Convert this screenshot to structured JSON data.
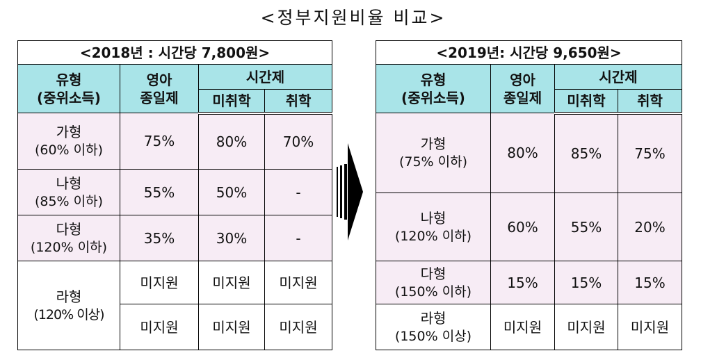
{
  "title": "<정부지원비율 비교>",
  "colors": {
    "header_bg": "#a9e4e8",
    "row_bg": "#f7ecf5",
    "border": "#000000"
  },
  "arrow_icon": "right-arrow-icon",
  "tables": [
    {
      "caption": "<2018년 : 시간당 7,800원>",
      "headers": {
        "type": [
          "유형",
          "(중위소득)"
        ],
        "infant": [
          "영아",
          "종일제"
        ],
        "hourly": "시간제",
        "preschool": "미취학",
        "school": "취학"
      },
      "rows": [
        {
          "type": "가형",
          "income": "(60% 이하)",
          "values": [
            "75%",
            "80%",
            "70%"
          ]
        },
        {
          "type": "나형",
          "income": "(85% 이하)",
          "values": [
            "55%",
            "50%",
            "-"
          ]
        },
        {
          "type": "다형",
          "income": "(120% 이하)",
          "values": [
            "35%",
            "30%",
            "-"
          ]
        },
        {
          "type": "라형",
          "income": "(120% 이상)",
          "values": [
            [
              "미지원",
              "미지원",
              "미지원"
            ],
            [
              "미지원",
              "미지원",
              "미지원"
            ]
          ]
        }
      ]
    },
    {
      "caption": "<2019년: 시간당 9,650원>",
      "headers": {
        "type": [
          "유형",
          "(중위소득)"
        ],
        "infant": [
          "영아",
          "종일제"
        ],
        "hourly": "시간제",
        "preschool": "미취학",
        "school": "취학"
      },
      "rows": [
        {
          "type": "가형",
          "income": "(75% 이하)",
          "values": [
            "80%",
            "85%",
            "75%"
          ]
        },
        {
          "type": "나형",
          "income": "(120% 이하)",
          "values": [
            "60%",
            "55%",
            "20%"
          ]
        },
        {
          "type": "다형",
          "income": "(150% 이하)",
          "values": [
            "15%",
            "15%",
            "15%"
          ]
        },
        {
          "type": "라형",
          "income": "(150% 이상)",
          "values": [
            "미지원",
            "미지원",
            "미지원"
          ]
        }
      ]
    }
  ]
}
